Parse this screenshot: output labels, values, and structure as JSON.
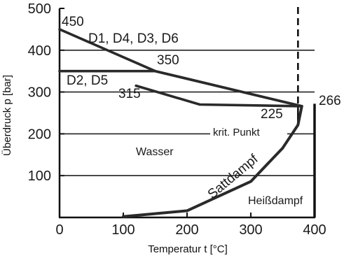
{
  "chart_data": {
    "type": "line",
    "xlabel": "Temperatur t [°C]",
    "ylabel": "Überdruck p [bar]",
    "xlim": [
      0,
      400
    ],
    "ylim": [
      0,
      500
    ],
    "x_ticks": [
      "0",
      "100",
      "200",
      "300",
      "400"
    ],
    "y_ticks": [
      "100",
      "200",
      "300",
      "400",
      "500"
    ],
    "grid": "horizontal",
    "series": [
      {
        "name": "D1, D4, D3, D6",
        "x": [
          0,
          150,
          380
        ],
        "y": [
          450,
          350,
          266
        ]
      },
      {
        "name": "D2, D5",
        "x": [
          0,
          150,
          380
        ],
        "y": [
          350,
          350,
          266
        ]
      },
      {
        "name": "D2, D5",
        "x": [
          120,
          220,
          380
        ],
        "y": [
          315,
          270,
          266
        ]
      },
      {
        "name": "Sattdampf",
        "x": [
          100,
          200,
          300,
          350,
          374,
          380
        ],
        "y": [
          2,
          16,
          86,
          166,
          221,
          266
        ]
      }
    ],
    "critical_temperature": 374,
    "max_temperature_line": 400,
    "annotations": {
      "p450": "450",
      "p350": "350",
      "p315": "315",
      "p225": "225",
      "p266": "266",
      "series_a": "D1, D4, D3, D6",
      "series_b": "D2, D5",
      "krit": "krit. Punkt",
      "wasser": "Wasser",
      "sattdampf": "Sattdampf",
      "heiss": "Heißdampf"
    }
  }
}
